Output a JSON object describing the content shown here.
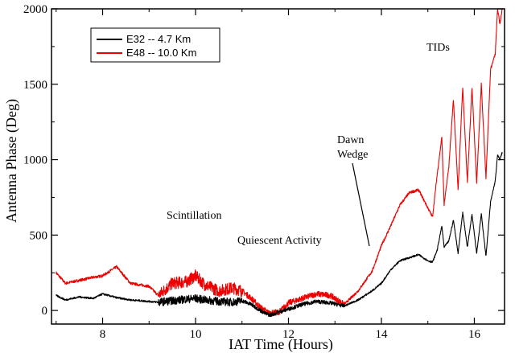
{
  "chart_data": {
    "type": "line",
    "title": "",
    "xlabel": "IAT Time (Hours)",
    "ylabel": "Antenna Phase (Deg)",
    "xlim": [
      6.9,
      16.65
    ],
    "ylim": [
      -90,
      2000
    ],
    "xticks": [
      8,
      10,
      12,
      14,
      16
    ],
    "yticks": [
      0,
      500,
      1000,
      1500,
      2000
    ],
    "grid": false,
    "legend": {
      "placement": "top-left"
    },
    "series": [
      {
        "name": "E32 -- 4.7 Km",
        "color": "#000000",
        "x": [
          7.0,
          7.2,
          7.5,
          7.8,
          8.0,
          8.3,
          8.6,
          9.0,
          9.2,
          9.5,
          9.8,
          10.0,
          10.2,
          10.5,
          10.8,
          11.0,
          11.2,
          11.4,
          11.5,
          11.6,
          11.8,
          12.0,
          12.3,
          12.6,
          12.9,
          13.2,
          13.5,
          13.8,
          14.0,
          14.2,
          14.4,
          14.6,
          14.8,
          15.0,
          15.1,
          15.2,
          15.3,
          15.35,
          15.45,
          15.55,
          15.65,
          15.75,
          15.85,
          15.95,
          16.05,
          16.15,
          16.25,
          16.35,
          16.45,
          16.5,
          16.55,
          16.6
        ],
        "y": [
          100,
          70,
          90,
          80,
          110,
          85,
          70,
          60,
          55,
          65,
          75,
          80,
          70,
          60,
          55,
          65,
          40,
          0,
          -20,
          -30,
          -10,
          10,
          40,
          60,
          50,
          30,
          70,
          130,
          180,
          270,
          330,
          350,
          370,
          330,
          320,
          400,
          560,
          420,
          460,
          600,
          380,
          650,
          420,
          640,
          380,
          640,
          360,
          720,
          860,
          1030,
          1000,
          1050
        ]
      },
      {
        "name": "E48 -- 10.0 Km",
        "color": "#ee0000",
        "x": [
          7.0,
          7.2,
          7.5,
          7.8,
          8.0,
          8.3,
          8.6,
          9.0,
          9.2,
          9.5,
          9.8,
          10.0,
          10.2,
          10.5,
          10.8,
          11.0,
          11.2,
          11.4,
          11.5,
          11.6,
          11.8,
          12.0,
          12.3,
          12.6,
          12.9,
          13.2,
          13.5,
          13.8,
          14.0,
          14.2,
          14.4,
          14.6,
          14.8,
          15.0,
          15.1,
          15.2,
          15.3,
          15.35,
          15.45,
          15.55,
          15.65,
          15.75,
          15.85,
          15.95,
          16.05,
          16.15,
          16.25,
          16.35,
          16.45,
          16.5,
          16.55,
          16.6
        ],
        "y": [
          250,
          180,
          200,
          220,
          230,
          290,
          180,
          160,
          100,
          180,
          190,
          230,
          170,
          130,
          150,
          130,
          80,
          20,
          0,
          -20,
          -10,
          50,
          80,
          110,
          100,
          40,
          130,
          260,
          430,
          560,
          700,
          780,
          800,
          680,
          620,
          900,
          1150,
          700,
          950,
          1400,
          800,
          1480,
          850,
          1480,
          850,
          1500,
          880,
          1600,
          1700,
          2000,
          1900,
          2000
        ]
      }
    ],
    "annotations": [
      {
        "text": "TIDs"
      },
      {
        "text": "Dawn"
      },
      {
        "text": "Wedge"
      },
      {
        "text": "Scintillation"
      },
      {
        "text": "Quiescent Activity"
      }
    ]
  }
}
